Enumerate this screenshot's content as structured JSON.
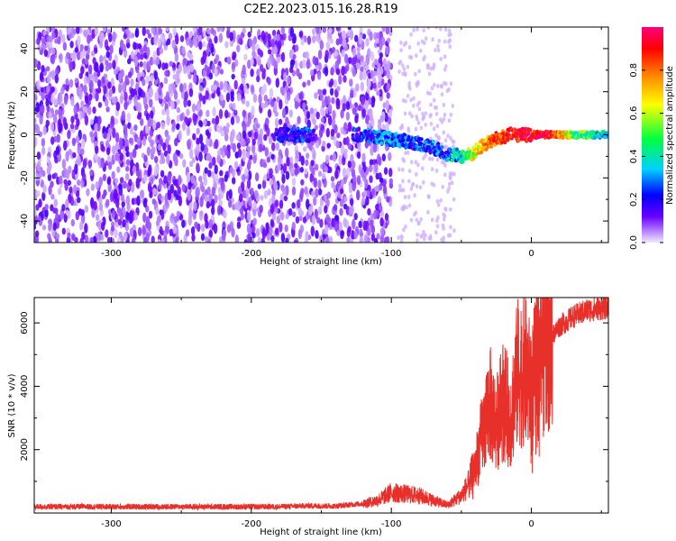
{
  "title": "C2E2.2023.015.16.28.R19",
  "colors": {
    "snr_line": "#e8302b",
    "axis": "#000000"
  },
  "chart_data": [
    {
      "type": "heatmap",
      "xlabel": "Height of straight line (km)",
      "ylabel": "Frequency (Hz)",
      "xlim": [
        -355,
        55
      ],
      "ylim": [
        -50,
        50
      ],
      "x_ticks": [
        "-300",
        "-200",
        "-100",
        "0"
      ],
      "y_ticks": [
        "40",
        "20",
        "0",
        "-20",
        "-40"
      ],
      "colorbar": {
        "label": "Normalized spectral amplitude",
        "range": [
          0.0,
          1.0
        ],
        "ticks": [
          "0.0",
          "0.2",
          "0.4",
          "0.6",
          "0.8"
        ],
        "colors": [
          "#f0e8ff",
          "#6a00ff",
          "#0000ff",
          "#00d0ff",
          "#00ff40",
          "#ffff00",
          "#ff8000",
          "#ff0000",
          "#ff0080"
        ]
      },
      "noise_region": [
        -355,
        -115
      ],
      "signal_track": [
        {
          "x": -182,
          "freq": 0,
          "amp": 0.2
        },
        {
          "x": -165,
          "freq": 0,
          "amp": 0.25
        },
        {
          "x": -158,
          "freq": 0,
          "amp": 0.25
        },
        {
          "x": -125,
          "freq": 0,
          "amp": 0.25
        },
        {
          "x": -110,
          "freq": -1,
          "amp": 0.3
        },
        {
          "x": -100,
          "freq": -2,
          "amp": 0.32
        },
        {
          "x": -90,
          "freq": -3,
          "amp": 0.3
        },
        {
          "x": -80,
          "freq": -4,
          "amp": 0.28
        },
        {
          "x": -70,
          "freq": -6,
          "amp": 0.3
        },
        {
          "x": -60,
          "freq": -9,
          "amp": 0.32
        },
        {
          "x": -50,
          "freq": -10,
          "amp": 0.45
        },
        {
          "x": -42,
          "freq": -9,
          "amp": 0.6
        },
        {
          "x": -35,
          "freq": -5,
          "amp": 0.75
        },
        {
          "x": -25,
          "freq": -2,
          "amp": 0.85
        },
        {
          "x": -15,
          "freq": 0,
          "amp": 0.9
        },
        {
          "x": -5,
          "freq": 0,
          "amp": 0.92
        },
        {
          "x": 5,
          "freq": 0,
          "amp": 0.95
        },
        {
          "x": 15,
          "freq": 0,
          "amp": 0.9
        },
        {
          "x": 30,
          "freq": 0,
          "amp": 0.55
        },
        {
          "x": 55,
          "freq": 0,
          "amp": 0.4
        }
      ]
    },
    {
      "type": "line",
      "xlabel": "Height of straight line (km)",
      "ylabel": "SNR (10 * v/v)",
      "xlim": [
        -355,
        55
      ],
      "ylim": [
        0,
        6800
      ],
      "x_ticks": [
        "-300",
        "-200",
        "-100",
        "0"
      ],
      "y_ticks": [
        "2000",
        "4000",
        "6000"
      ],
      "series": [
        {
          "x": [
            -355,
            -320,
            -280,
            -240,
            -200,
            -180,
            -160,
            -140,
            -120,
            -110,
            -100,
            -90,
            -80,
            -70,
            -60,
            -50,
            -45,
            -40,
            -35,
            -30,
            -25,
            -20,
            -15,
            -10,
            -5,
            0,
            5,
            10,
            15,
            20,
            30,
            40,
            55
          ],
          "y": [
            200,
            200,
            200,
            200,
            200,
            200,
            230,
            220,
            300,
            400,
            650,
            600,
            550,
            400,
            250,
            550,
            900,
            1500,
            2500,
            3500,
            2800,
            3600,
            3000,
            4400,
            4600,
            3800,
            4900,
            5400,
            5600,
            5900,
            6200,
            6400,
            6500
          ]
        }
      ]
    }
  ]
}
